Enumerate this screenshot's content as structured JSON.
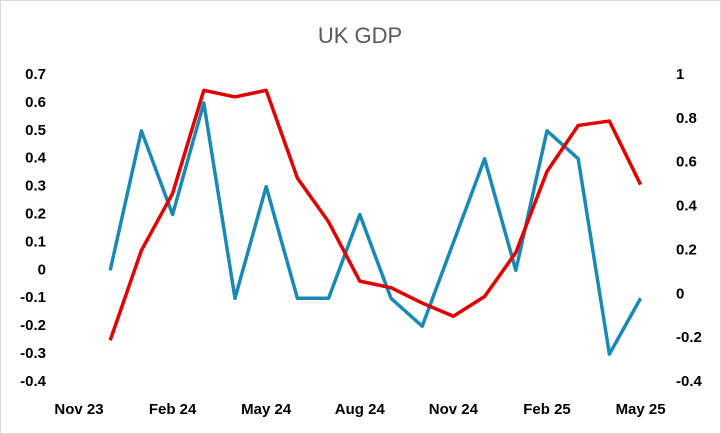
{
  "chart_data": {
    "type": "line",
    "title": "UK GDP",
    "categories": [
      "Nov 23",
      null,
      null,
      "Feb 24",
      null,
      null,
      "May 24",
      null,
      null,
      "Aug 24",
      null,
      null,
      "Nov 24",
      null,
      null,
      "Feb 25",
      null,
      null,
      "May 25"
    ],
    "series": [
      {
        "color": "#1a8ab4",
        "values": [
          null,
          0,
          0.5,
          0.2,
          0.6,
          -0.1,
          0.3,
          -0.1,
          -0.1,
          0.2,
          -0.1,
          -0.2,
          0.1,
          0.4,
          0,
          0.5,
          0.4,
          -0.3,
          -0.1
        ]
      },
      {
        "color": "#e00000",
        "axis": "y2",
        "values": [
          null,
          -0.21,
          0.2,
          0.46,
          0.93,
          0.9,
          0.93,
          0.53,
          0.33,
          0.06,
          0.03,
          -0.04,
          -0.1,
          -0.01,
          0.19,
          0.56,
          0.77,
          0.79,
          0.5
        ]
      }
    ],
    "ylim": [
      -0.4,
      0.7
    ],
    "yticks": [
      -0.4,
      -0.3,
      -0.2,
      -0.1,
      0,
      0.1,
      0.2,
      0.3,
      0.4,
      0.5,
      0.6,
      0.7
    ],
    "y2lim": [
      -0.4,
      1
    ],
    "y2ticks": [
      -0.4,
      -0.2,
      0,
      0.2,
      0.4,
      0.6,
      0.8,
      1
    ],
    "grid": false
  }
}
